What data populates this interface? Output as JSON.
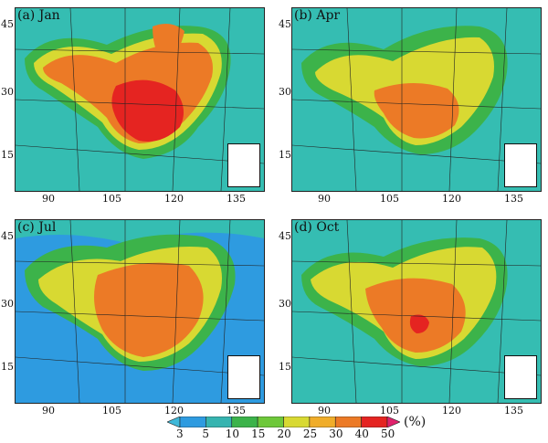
{
  "panels": [
    {
      "label": "(a) Jan"
    },
    {
      "label": "(b) Apr"
    },
    {
      "label": "(c) Jul"
    },
    {
      "label": "(d) Oct"
    }
  ],
  "lat_ticks": [
    "45",
    "30",
    "15"
  ],
  "lon_ticks": [
    "90",
    "105",
    "120",
    "135"
  ],
  "colorbar": {
    "levels": [
      "3",
      "5",
      "10",
      "15",
      "20",
      "25",
      "30",
      "40",
      "50"
    ],
    "unit": "(%)",
    "colors": [
      "#3fb8d8",
      "#2e9be0",
      "#36b4b0",
      "#3cb34a",
      "#6ec83a",
      "#d8d932",
      "#f0ad2a",
      "#ec7a26",
      "#e52421",
      "#e0226c"
    ]
  }
}
